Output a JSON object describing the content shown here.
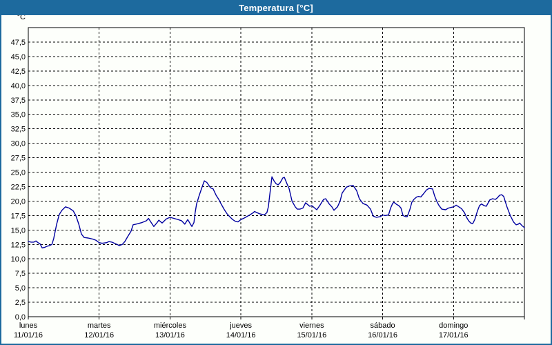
{
  "window": {
    "title": "Temperatura [°C]"
  },
  "colors": {
    "title_bar_bg": "#1d6a9e",
    "title_text": "#ffffff",
    "frame_border": "#1d6a9e",
    "chart_bg": "#fdfffb",
    "line": "#0000a0",
    "grid": "#000000",
    "axis_text": "#000000"
  },
  "chart_data": {
    "type": "line",
    "title": "Temperatura [°C]",
    "grid": "dashed",
    "legend": "none",
    "y_axis": {
      "unit": "°C",
      "min": 0,
      "max": 50,
      "tick_step": 2.5,
      "tick_labels": [
        "0,0",
        "2,5",
        "5,0",
        "7,5",
        "10,0",
        "12,5",
        "15,0",
        "17,5",
        "20,0",
        "22,5",
        "25,0",
        "27,5",
        "30,0",
        "32,5",
        "35,0",
        "37,5",
        "40,0",
        "42,5",
        "45,0",
        "47,5"
      ]
    },
    "x_axis": {
      "unit": "hours",
      "range": [
        0,
        168
      ],
      "hours_per_day": 24,
      "days": [
        {
          "name": "lunes",
          "date": "11/01/16"
        },
        {
          "name": "martes",
          "date": "12/01/16"
        },
        {
          "name": "miércoles",
          "date": "13/01/16"
        },
        {
          "name": "jueves",
          "date": "14/01/16"
        },
        {
          "name": "viernes",
          "date": "15/01/16"
        },
        {
          "name": "sábado",
          "date": "16/01/16"
        },
        {
          "name": "domingo",
          "date": "17/01/16"
        }
      ]
    },
    "series": [
      {
        "name": "Temperatura",
        "color": "#0000a0",
        "points": [
          [
            0,
            13.0
          ],
          [
            1,
            12.9
          ],
          [
            1.9,
            12.9
          ],
          [
            2.6,
            13.1
          ],
          [
            3.3,
            12.8
          ],
          [
            4,
            12.6
          ],
          [
            4.7,
            11.9
          ],
          [
            5.6,
            12.0
          ],
          [
            6.4,
            12.2
          ],
          [
            7.2,
            12.3
          ],
          [
            8,
            12.5
          ],
          [
            8.6,
            13.5
          ],
          [
            9.6,
            16.0
          ],
          [
            10.5,
            17.7
          ],
          [
            11.4,
            18.4
          ],
          [
            12.6,
            19.0
          ],
          [
            13.8,
            18.8
          ],
          [
            15.2,
            18.3
          ],
          [
            16.1,
            17.5
          ],
          [
            17.1,
            16.0
          ],
          [
            18,
            14.3
          ],
          [
            18.9,
            13.7
          ],
          [
            20.3,
            13.6
          ],
          [
            22,
            13.4
          ],
          [
            23,
            13.2
          ],
          [
            24,
            12.8
          ],
          [
            25,
            12.7
          ],
          [
            26.5,
            12.8
          ],
          [
            27.3,
            13.0
          ],
          [
            28.3,
            12.9
          ],
          [
            29.2,
            12.7
          ],
          [
            30.1,
            12.5
          ],
          [
            30.8,
            12.3
          ],
          [
            31.8,
            12.5
          ],
          [
            32.7,
            13.0
          ],
          [
            33.6,
            13.8
          ],
          [
            34.8,
            14.8
          ],
          [
            35.5,
            15.9
          ],
          [
            36.4,
            16.0
          ],
          [
            37.2,
            16.1
          ],
          [
            38.6,
            16.3
          ],
          [
            40,
            16.6
          ],
          [
            40.7,
            17.0
          ],
          [
            41.6,
            16.3
          ],
          [
            42.5,
            15.6
          ],
          [
            43.5,
            16.2
          ],
          [
            44.2,
            16.7
          ],
          [
            45.3,
            16.2
          ],
          [
            46.7,
            16.9
          ],
          [
            48,
            17.2
          ],
          [
            49.3,
            17.0
          ],
          [
            50.7,
            16.8
          ],
          [
            51.9,
            16.6
          ],
          [
            53,
            16.0
          ],
          [
            54,
            16.8
          ],
          [
            54.9,
            16.0
          ],
          [
            55.4,
            15.6
          ],
          [
            56.1,
            16.3
          ],
          [
            56.5,
            18.0
          ],
          [
            57,
            19.5
          ],
          [
            57.9,
            21.0
          ],
          [
            58.9,
            22.5
          ],
          [
            59.6,
            23.5
          ],
          [
            60.5,
            23.2
          ],
          [
            61.7,
            22.3
          ],
          [
            62.6,
            22.1
          ],
          [
            63.6,
            21.0
          ],
          [
            64.5,
            20.3
          ],
          [
            65.4,
            19.4
          ],
          [
            66.4,
            18.5
          ],
          [
            67.3,
            17.8
          ],
          [
            68.2,
            17.3
          ],
          [
            69.2,
            16.8
          ],
          [
            70.1,
            16.5
          ],
          [
            71,
            16.4
          ],
          [
            72,
            16.8
          ],
          [
            72.9,
            17.0
          ],
          [
            75,
            17.6
          ],
          [
            76.2,
            18.0
          ],
          [
            76.6,
            18.2
          ],
          [
            78.3,
            17.8
          ],
          [
            79.9,
            17.6
          ],
          [
            80.8,
            18.0
          ],
          [
            81.3,
            19.0
          ],
          [
            82,
            22.0
          ],
          [
            82.5,
            24.2
          ],
          [
            83.2,
            23.5
          ],
          [
            83.9,
            23.0
          ],
          [
            84.6,
            22.8
          ],
          [
            85.3,
            23.2
          ],
          [
            86.2,
            24.0
          ],
          [
            86.7,
            24.1
          ],
          [
            87.6,
            23.0
          ],
          [
            88.3,
            22.2
          ],
          [
            89.3,
            20.0
          ],
          [
            90.4,
            19.0
          ],
          [
            91.1,
            18.6
          ],
          [
            92,
            18.6
          ],
          [
            93,
            18.8
          ],
          [
            93.9,
            19.7
          ],
          [
            95.3,
            19.1
          ],
          [
            96,
            19.2
          ],
          [
            97.7,
            18.5
          ],
          [
            98.8,
            19.3
          ],
          [
            100,
            20.3
          ],
          [
            100.7,
            20.4
          ],
          [
            101.9,
            19.5
          ],
          [
            102.8,
            19.0
          ],
          [
            103.5,
            18.4
          ],
          [
            104.7,
            19.0
          ],
          [
            105.6,
            20.0
          ],
          [
            106.3,
            21.4
          ],
          [
            107.7,
            22.4
          ],
          [
            108.6,
            22.6
          ],
          [
            110,
            22.7
          ],
          [
            111.2,
            21.8
          ],
          [
            112.1,
            20.4
          ],
          [
            113.3,
            19.6
          ],
          [
            114.7,
            19.3
          ],
          [
            115.9,
            18.6
          ],
          [
            116.8,
            17.4
          ],
          [
            117.8,
            17.2
          ],
          [
            119.2,
            17.3
          ],
          [
            120,
            17.6
          ],
          [
            120.8,
            17.5
          ],
          [
            122,
            17.6
          ],
          [
            122.7,
            18.8
          ],
          [
            123.4,
            19.6
          ],
          [
            123.8,
            19.8
          ],
          [
            124.8,
            19.4
          ],
          [
            125.5,
            19.2
          ],
          [
            126.2,
            18.8
          ],
          [
            126.9,
            17.5
          ],
          [
            127.8,
            17.3
          ],
          [
            128.3,
            17.3
          ],
          [
            129.2,
            18.5
          ],
          [
            129.9,
            19.8
          ],
          [
            130.6,
            20.3
          ],
          [
            131.5,
            20.7
          ],
          [
            132.2,
            20.8
          ],
          [
            132.9,
            20.7
          ],
          [
            133.9,
            21.3
          ],
          [
            134.8,
            21.9
          ],
          [
            135.7,
            22.2
          ],
          [
            136.9,
            22.1
          ],
          [
            137.6,
            20.9
          ],
          [
            138.3,
            20.0
          ],
          [
            139,
            19.3
          ],
          [
            140,
            18.6
          ],
          [
            141.3,
            18.5
          ],
          [
            142.3,
            18.8
          ],
          [
            143.2,
            18.9
          ],
          [
            144,
            19.0
          ],
          [
            144.9,
            19.3
          ],
          [
            145.8,
            19.0
          ],
          [
            146.7,
            18.7
          ],
          [
            147.7,
            18.0
          ],
          [
            148.4,
            17.2
          ],
          [
            149.1,
            16.6
          ],
          [
            149.8,
            16.2
          ],
          [
            150.5,
            16.1
          ],
          [
            151.2,
            16.8
          ],
          [
            152.1,
            18.3
          ],
          [
            152.8,
            19.2
          ],
          [
            153.5,
            19.5
          ],
          [
            154.4,
            19.2
          ],
          [
            155.1,
            19.1
          ],
          [
            156.3,
            20.2
          ],
          [
            157.2,
            20.4
          ],
          [
            158.2,
            20.3
          ],
          [
            158.9,
            20.6
          ],
          [
            159.6,
            21.0
          ],
          [
            160.3,
            21.1
          ],
          [
            161,
            20.8
          ],
          [
            162.1,
            19.0
          ],
          [
            163.3,
            17.4
          ],
          [
            164.3,
            16.4
          ],
          [
            165.2,
            15.9
          ],
          [
            165.9,
            16.0
          ],
          [
            166.4,
            16.2
          ],
          [
            167.1,
            15.8
          ],
          [
            168,
            15.4
          ]
        ]
      }
    ]
  }
}
